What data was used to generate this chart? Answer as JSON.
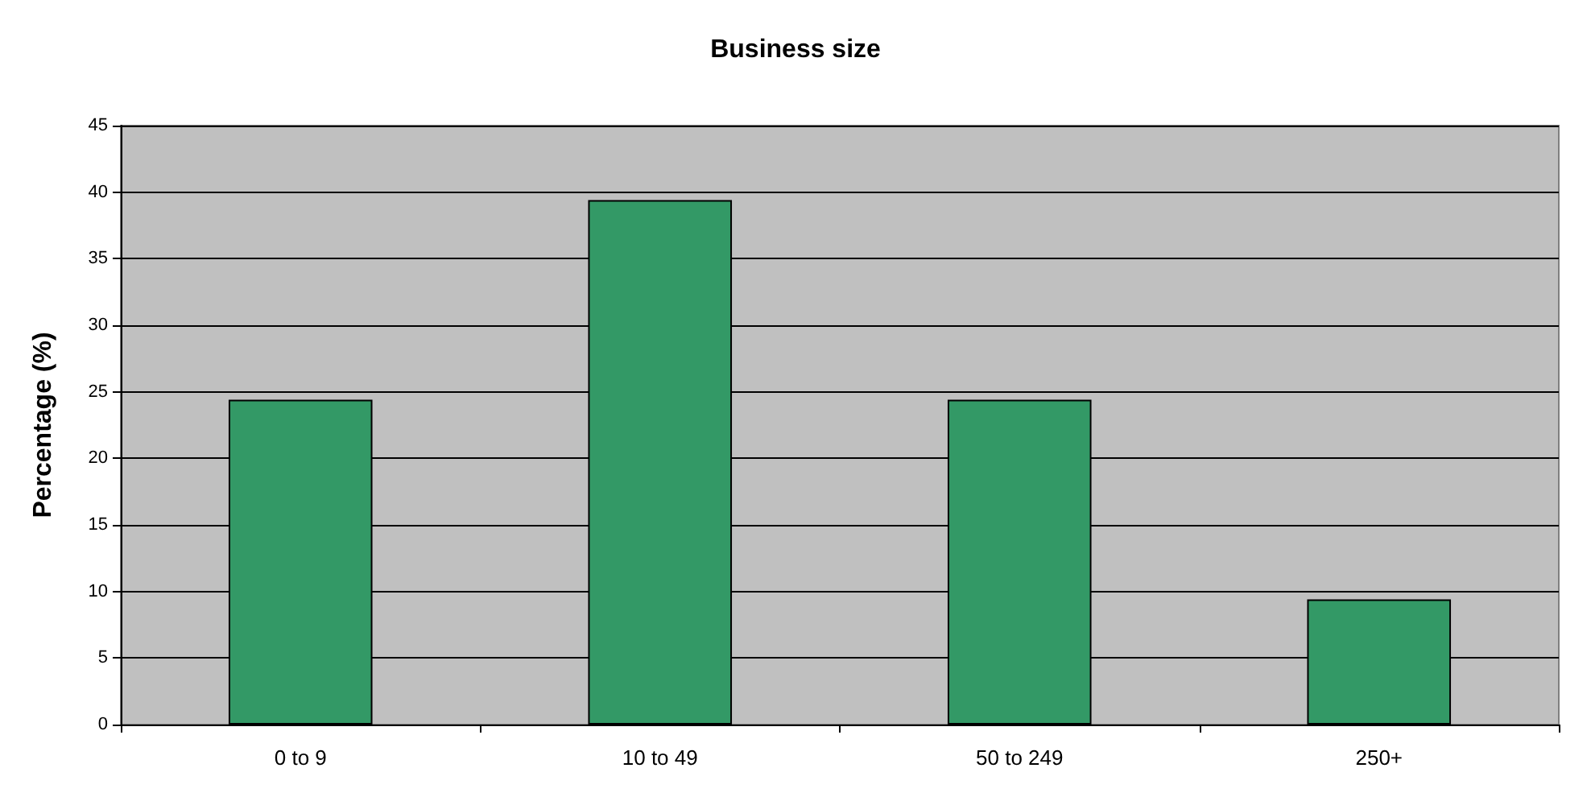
{
  "chart_data": {
    "type": "bar",
    "title": "Business size",
    "ylabel": "Percentage (%)",
    "categories": [
      "0 to 9",
      "10 to 49",
      "50 to 249",
      "250+"
    ],
    "values": [
      24.4,
      39.4,
      24.4,
      9.4
    ],
    "color": "#339966",
    "ylim": [
      0,
      45
    ],
    "yticks": [
      0,
      5,
      10,
      15,
      20,
      25,
      30,
      35,
      40,
      45
    ],
    "grid": "y"
  }
}
